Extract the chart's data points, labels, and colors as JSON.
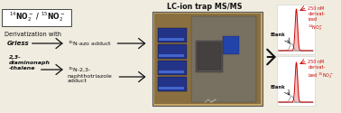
{
  "bg_color": "#f0ece0",
  "box_text": "$^{14}$NO$_2^-$ / $^{15}$NO$_2^-$",
  "deriv_title": "Derivatization with",
  "griess_label": "Griess",
  "griess_adduct": "$^{15}$N-azo adduct",
  "dan_label": "2,3-\ndiaminonaph\n-thalene",
  "dan_adduct": "$^{15}$N-2,3-\nnaphthotriazole\nadduct",
  "lc_title": "LC-ion trap MS/MS",
  "peak1_label": "250 nM\nderivat-\nized\n$^{14}$NO$_2^-$",
  "peak1_blank": "Blank",
  "peak2_label": "250 nM\nderivat-\nized $^{15}$NO$_2^-$",
  "peak2_blank": "Blank",
  "arrow_color": "#111111",
  "red_color": "#cc0000",
  "pink_color": "#ee9999",
  "text_color": "#111111",
  "box_border": "#444444",
  "chrom_box_color": "#dddddd",
  "photo_bg": "#c8a86a",
  "photo_border": "#555555"
}
